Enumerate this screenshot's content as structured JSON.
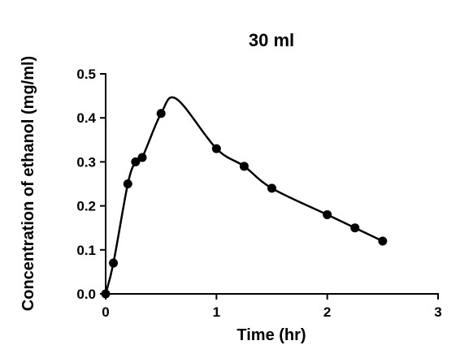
{
  "chart_data": {
    "type": "line",
    "title": "30 ml",
    "xlabel": "Time (hr)",
    "ylabel": "Concentration of ethanol (mg/ml)",
    "xlim": [
      0,
      3
    ],
    "ylim": [
      0,
      0.5
    ],
    "x_ticks": [
      "0",
      "1",
      "2",
      "3"
    ],
    "y_ticks": [
      "0.0",
      "0.1",
      "0.2",
      "0.3",
      "0.4",
      "0.5"
    ],
    "grid": false,
    "series": [
      {
        "x": [
          0,
          0.07,
          0.2,
          0.27,
          0.33,
          0.5,
          1.0,
          1.25,
          1.5,
          2.0,
          2.25,
          2.5
        ],
        "values": [
          0.0,
          0.07,
          0.25,
          0.3,
          0.31,
          0.41,
          0.33,
          0.29,
          0.24,
          0.18,
          0.15,
          0.12
        ],
        "fit_peak": [
          0.64,
          0.443
        ]
      }
    ],
    "colors": {
      "line": "#000000",
      "marker": "#000000"
    }
  }
}
